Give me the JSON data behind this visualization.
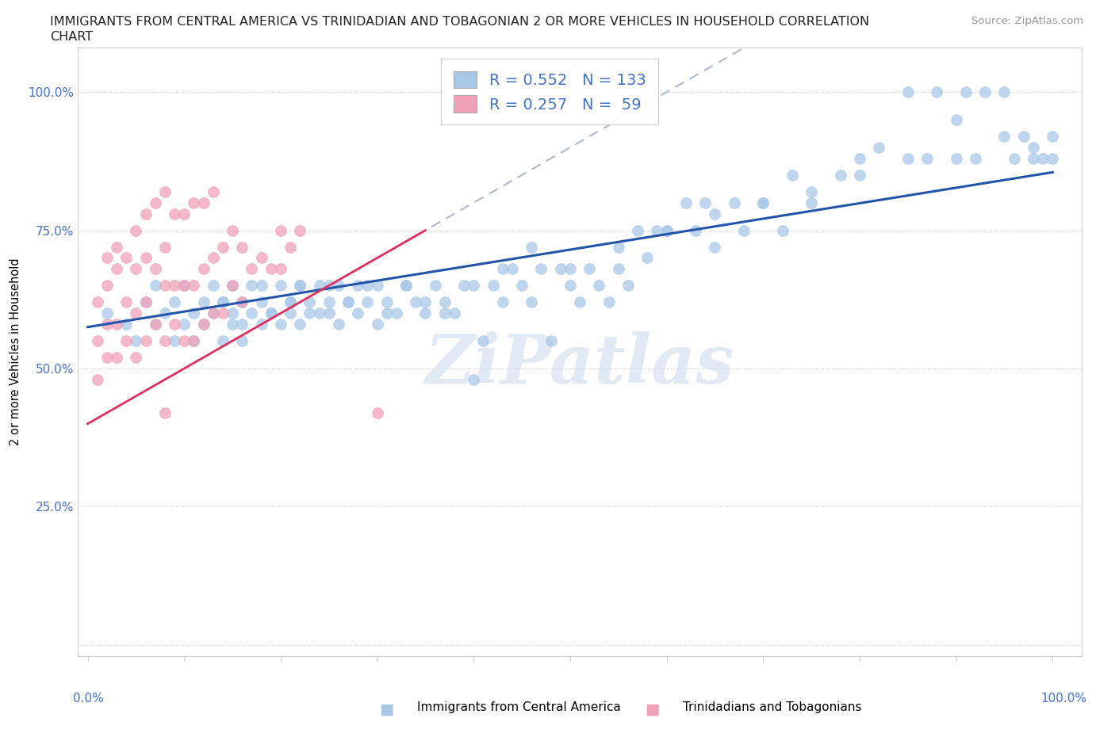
{
  "title_line1": "IMMIGRANTS FROM CENTRAL AMERICA VS TRINIDADIAN AND TOBAGONIAN 2 OR MORE VEHICLES IN HOUSEHOLD CORRELATION",
  "title_line2": "CHART",
  "source_text": "Source: ZipAtlas.com",
  "ylabel": "2 or more Vehicles in Household",
  "legend_label_blue": "Immigrants from Central America",
  "legend_label_pink": "Trinidadians and Tobagonians",
  "blue_scatter_color": "#a8c8e8",
  "pink_scatter_color": "#f0a0b8",
  "blue_line_color": "#2255aa",
  "pink_line_color": "#e03060",
  "gray_dash_color": "#b0b8c8",
  "r_blue": 0.552,
  "r_pink": 0.257,
  "n_blue": 133,
  "n_pink": 59,
  "watermark": "ZiPatlas",
  "legend_text_color": "#4472c4",
  "axis_color": "#4472c4",
  "blue_x": [
    0.02,
    0.04,
    0.05,
    0.06,
    0.07,
    0.07,
    0.08,
    0.09,
    0.09,
    0.1,
    0.1,
    0.11,
    0.11,
    0.12,
    0.12,
    0.13,
    0.13,
    0.14,
    0.14,
    0.15,
    0.15,
    0.15,
    0.16,
    0.16,
    0.17,
    0.17,
    0.18,
    0.18,
    0.19,
    0.2,
    0.2,
    0.21,
    0.21,
    0.22,
    0.22,
    0.23,
    0.23,
    0.24,
    0.25,
    0.25,
    0.26,
    0.26,
    0.27,
    0.28,
    0.28,
    0.29,
    0.3,
    0.3,
    0.31,
    0.32,
    0.33,
    0.34,
    0.35,
    0.36,
    0.37,
    0.38,
    0.39,
    0.4,
    0.41,
    0.42,
    0.43,
    0.44,
    0.45,
    0.46,
    0.47,
    0.48,
    0.49,
    0.5,
    0.51,
    0.52,
    0.53,
    0.54,
    0.55,
    0.56,
    0.57,
    0.58,
    0.59,
    0.6,
    0.62,
    0.63,
    0.64,
    0.65,
    0.67,
    0.68,
    0.7,
    0.72,
    0.73,
    0.75,
    0.78,
    0.8,
    0.82,
    0.85,
    0.87,
    0.88,
    0.9,
    0.91,
    0.92,
    0.93,
    0.95,
    0.96,
    0.97,
    0.98,
    0.99,
    1.0,
    0.14,
    0.16,
    0.18,
    0.19,
    0.21,
    0.22,
    0.24,
    0.25,
    0.27,
    0.29,
    0.31,
    0.33,
    0.35,
    0.37,
    0.4,
    0.43,
    0.46,
    0.5,
    0.55,
    0.6,
    0.65,
    0.7,
    0.75,
    0.8,
    0.85,
    0.9,
    0.95,
    0.98,
    1.0
  ],
  "blue_y": [
    0.6,
    0.58,
    0.55,
    0.62,
    0.58,
    0.65,
    0.6,
    0.55,
    0.62,
    0.58,
    0.65,
    0.6,
    0.55,
    0.62,
    0.58,
    0.6,
    0.65,
    0.62,
    0.55,
    0.6,
    0.58,
    0.65,
    0.62,
    0.55,
    0.6,
    0.65,
    0.58,
    0.62,
    0.6,
    0.65,
    0.58,
    0.62,
    0.6,
    0.65,
    0.58,
    0.62,
    0.6,
    0.65,
    0.62,
    0.6,
    0.65,
    0.58,
    0.62,
    0.6,
    0.65,
    0.62,
    0.58,
    0.65,
    0.62,
    0.6,
    0.65,
    0.62,
    0.6,
    0.65,
    0.62,
    0.6,
    0.65,
    0.48,
    0.55,
    0.65,
    0.62,
    0.68,
    0.65,
    0.62,
    0.68,
    0.55,
    0.68,
    0.65,
    0.62,
    0.68,
    0.65,
    0.62,
    0.68,
    0.65,
    0.75,
    0.7,
    0.75,
    0.75,
    0.8,
    0.75,
    0.8,
    0.72,
    0.8,
    0.75,
    0.8,
    0.75,
    0.85,
    0.8,
    0.85,
    0.88,
    0.9,
    1.0,
    0.88,
    1.0,
    0.95,
    1.0,
    0.88,
    1.0,
    1.0,
    0.88,
    0.92,
    0.9,
    0.88,
    0.88,
    0.62,
    0.58,
    0.65,
    0.6,
    0.62,
    0.65,
    0.6,
    0.65,
    0.62,
    0.65,
    0.6,
    0.65,
    0.62,
    0.6,
    0.65,
    0.68,
    0.72,
    0.68,
    0.72,
    0.75,
    0.78,
    0.8,
    0.82,
    0.85,
    0.88,
    0.88,
    0.92,
    0.88,
    0.92
  ],
  "pink_x": [
    0.01,
    0.01,
    0.01,
    0.02,
    0.02,
    0.02,
    0.02,
    0.03,
    0.03,
    0.03,
    0.03,
    0.04,
    0.04,
    0.04,
    0.05,
    0.05,
    0.05,
    0.05,
    0.06,
    0.06,
    0.06,
    0.06,
    0.07,
    0.07,
    0.07,
    0.08,
    0.08,
    0.08,
    0.08,
    0.09,
    0.09,
    0.09,
    0.1,
    0.1,
    0.1,
    0.11,
    0.11,
    0.11,
    0.12,
    0.12,
    0.12,
    0.13,
    0.13,
    0.13,
    0.14,
    0.14,
    0.15,
    0.15,
    0.16,
    0.16,
    0.17,
    0.18,
    0.19,
    0.2,
    0.2,
    0.21,
    0.22,
    0.3,
    0.08
  ],
  "pink_y": [
    0.55,
    0.48,
    0.62,
    0.52,
    0.58,
    0.65,
    0.7,
    0.52,
    0.58,
    0.68,
    0.72,
    0.55,
    0.62,
    0.7,
    0.52,
    0.6,
    0.68,
    0.75,
    0.55,
    0.62,
    0.7,
    0.78,
    0.58,
    0.68,
    0.8,
    0.55,
    0.65,
    0.72,
    0.82,
    0.58,
    0.65,
    0.78,
    0.55,
    0.65,
    0.78,
    0.55,
    0.65,
    0.8,
    0.58,
    0.68,
    0.8,
    0.6,
    0.7,
    0.82,
    0.6,
    0.72,
    0.65,
    0.75,
    0.62,
    0.72,
    0.68,
    0.7,
    0.68,
    0.68,
    0.75,
    0.72,
    0.75,
    0.42,
    0.42
  ]
}
